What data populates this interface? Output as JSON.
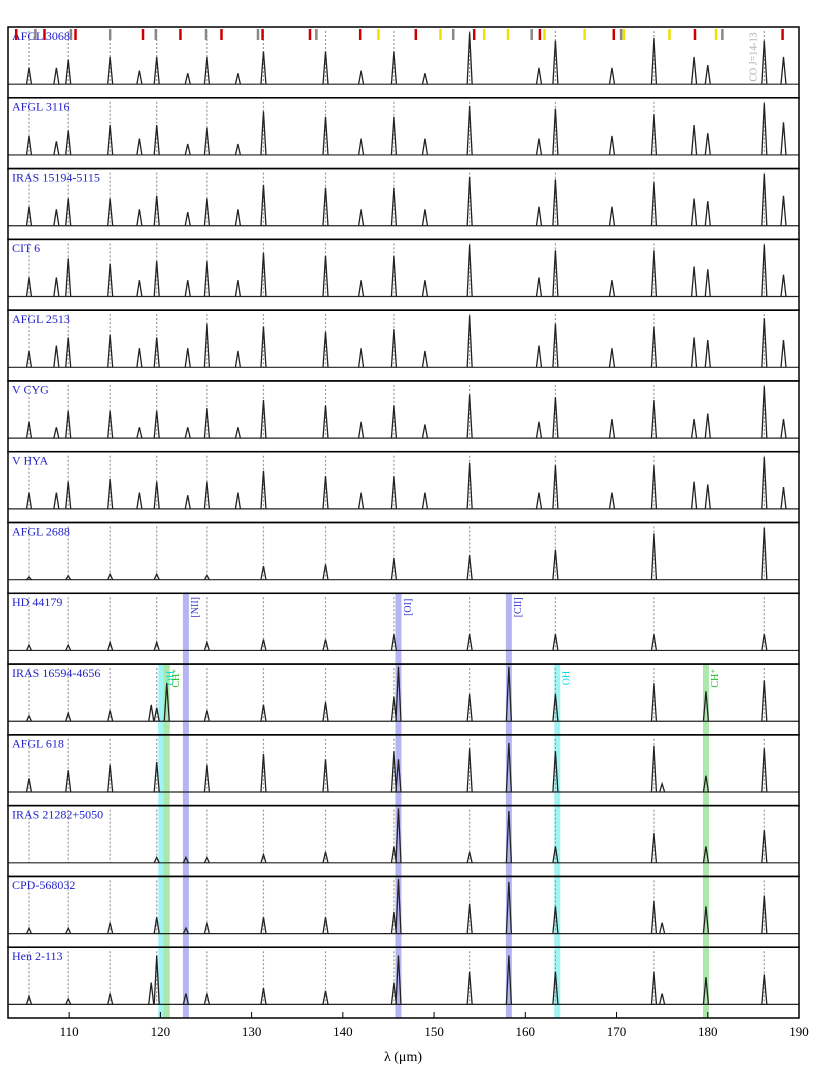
{
  "chart_data": {
    "type": "spectra",
    "xlabel": "λ (μm)",
    "xlim": [
      103.3,
      190
    ],
    "xticks": [
      110,
      120,
      130,
      140,
      150,
      160,
      170,
      180,
      190
    ],
    "ylim": [
      -0.25,
      1.05
    ],
    "line_color": "#222222",
    "name_color": "#2222cc",
    "co_lines": [
      105.6,
      109.9,
      114.5,
      119.6,
      125.1,
      131.3,
      138.1,
      145.6,
      153.9,
      163.3,
      174.1,
      186.2
    ],
    "markers": [
      {
        "color": "#cc0000",
        "x": [
          104.2,
          107.3,
          110.7,
          118.1,
          122.2,
          126.7,
          131.2,
          136.4,
          141.9,
          148.0,
          154.4,
          161.6,
          169.7,
          178.6,
          188.2
        ]
      },
      {
        "color": "#888888",
        "x": [
          106.3,
          110.2,
          114.5,
          119.5,
          125.0,
          130.7,
          137.1,
          152.1,
          160.7,
          170.5,
          181.6
        ]
      },
      {
        "color": "#f0e000",
        "x": [
          143.9,
          150.7,
          155.5,
          158.1,
          162.1,
          166.5,
          170.8,
          175.8,
          180.9
        ]
      }
    ],
    "panels": [
      {
        "name": "AFGL 3068",
        "annotation": {
          "text": "CO J=14-13",
          "x": 186.2
        },
        "x": [
          105.6,
          108.6,
          109.9,
          114.5,
          117.7,
          119.6,
          123.0,
          125.1,
          128.5,
          131.3,
          138.1,
          142.0,
          145.6,
          149.0,
          153.9,
          161.5,
          163.3,
          169.5,
          174.1,
          178.5,
          180.0,
          186.2,
          188.3
        ],
        "values": [
          0.3,
          0.3,
          0.45,
          0.5,
          0.25,
          0.5,
          0.2,
          0.5,
          0.2,
          0.6,
          0.6,
          0.25,
          0.6,
          0.2,
          0.95,
          0.3,
          0.8,
          0.3,
          0.85,
          0.5,
          0.35,
          0.8,
          0.5
        ]
      },
      {
        "name": "AFGL 3116",
        "x": [
          105.6,
          108.6,
          109.9,
          114.5,
          117.7,
          119.6,
          123.0,
          125.1,
          128.5,
          131.3,
          138.1,
          142.0,
          145.6,
          149.0,
          153.9,
          161.5,
          163.3,
          169.5,
          174.1,
          178.5,
          180.0,
          186.2,
          188.3
        ],
        "values": [
          0.35,
          0.25,
          0.45,
          0.55,
          0.3,
          0.55,
          0.2,
          0.5,
          0.2,
          0.8,
          0.7,
          0.3,
          0.7,
          0.3,
          0.9,
          0.3,
          0.85,
          0.35,
          0.75,
          0.55,
          0.4,
          0.95,
          0.6
        ]
      },
      {
        "name": "IRAS 15194-5115",
        "x": [
          105.6,
          108.6,
          109.9,
          114.5,
          117.7,
          119.6,
          123.0,
          125.1,
          128.5,
          131.3,
          138.1,
          142.0,
          145.6,
          149.0,
          153.9,
          161.5,
          163.3,
          169.5,
          174.1,
          178.5,
          180.0,
          186.2,
          188.3
        ],
        "values": [
          0.35,
          0.3,
          0.5,
          0.5,
          0.3,
          0.55,
          0.25,
          0.5,
          0.3,
          0.75,
          0.7,
          0.3,
          0.7,
          0.3,
          0.9,
          0.35,
          0.85,
          0.35,
          0.8,
          0.5,
          0.45,
          0.95,
          0.55
        ]
      },
      {
        "name": "CIT 6",
        "x": [
          105.6,
          108.6,
          109.9,
          114.5,
          117.7,
          119.6,
          123.0,
          125.1,
          128.5,
          131.3,
          138.1,
          142.0,
          145.6,
          149.0,
          153.9,
          161.5,
          163.3,
          169.5,
          174.1,
          178.5,
          180.0,
          186.2,
          188.3
        ],
        "values": [
          0.35,
          0.35,
          0.7,
          0.6,
          0.3,
          0.65,
          0.3,
          0.65,
          0.3,
          0.8,
          0.75,
          0.3,
          0.75,
          0.3,
          0.95,
          0.35,
          0.85,
          0.3,
          0.85,
          0.55,
          0.5,
          0.95,
          0.4
        ]
      },
      {
        "name": "AFGL 2513",
        "x": [
          105.6,
          108.6,
          109.9,
          114.5,
          117.7,
          119.6,
          123.0,
          125.1,
          128.5,
          131.3,
          138.1,
          142.0,
          145.6,
          149.0,
          153.9,
          161.5,
          163.3,
          169.5,
          174.1,
          178.5,
          180.0,
          186.2,
          188.3
        ],
        "values": [
          0.3,
          0.4,
          0.55,
          0.6,
          0.35,
          0.55,
          0.35,
          0.8,
          0.3,
          0.75,
          0.65,
          0.35,
          0.7,
          0.3,
          0.95,
          0.4,
          0.8,
          0.35,
          0.75,
          0.55,
          0.5,
          0.9,
          0.5
        ]
      },
      {
        "name": "V CYG",
        "x": [
          105.6,
          108.6,
          109.9,
          114.5,
          117.7,
          119.6,
          123.0,
          125.1,
          128.5,
          131.3,
          138.1,
          142.0,
          145.6,
          149.0,
          153.9,
          161.5,
          163.3,
          169.5,
          174.1,
          178.5,
          180.0,
          186.2,
          188.3
        ],
        "values": [
          0.3,
          0.2,
          0.5,
          0.5,
          0.2,
          0.5,
          0.2,
          0.55,
          0.2,
          0.7,
          0.6,
          0.3,
          0.6,
          0.25,
          0.8,
          0.3,
          0.75,
          0.35,
          0.7,
          0.35,
          0.45,
          0.95,
          0.35
        ]
      },
      {
        "name": "V HYA",
        "x": [
          105.6,
          108.6,
          109.9,
          114.5,
          117.7,
          119.6,
          123.0,
          125.1,
          128.5,
          131.3,
          138.1,
          142.0,
          145.6,
          149.0,
          153.9,
          161.5,
          163.3,
          169.5,
          174.1,
          178.5,
          180.0,
          186.2,
          188.3
        ],
        "values": [
          0.3,
          0.3,
          0.5,
          0.55,
          0.3,
          0.5,
          0.25,
          0.5,
          0.3,
          0.7,
          0.6,
          0.3,
          0.6,
          0.3,
          0.85,
          0.3,
          0.8,
          0.3,
          0.8,
          0.5,
          0.45,
          0.95,
          0.4
        ]
      },
      {
        "name": "AFGL 2688",
        "x": [
          105.6,
          109.9,
          114.5,
          119.6,
          125.1,
          131.3,
          138.1,
          145.6,
          153.9,
          163.3,
          174.1,
          186.2
        ],
        "values": [
          0.05,
          0.07,
          0.1,
          0.1,
          0.08,
          0.25,
          0.28,
          0.4,
          0.45,
          0.55,
          0.85,
          0.95
        ]
      },
      {
        "name": "HD 44179",
        "bands": [
          {
            "label": "[NII]",
            "x": 122.8,
            "color": "#9c9cf0",
            "label_color": "#3333cc"
          },
          {
            "label": "[OI]",
            "x": 146.1,
            "color": "#9c9cf0",
            "label_color": "#3333cc"
          },
          {
            "label": "[CII]",
            "x": 158.2,
            "color": "#9c9cf0",
            "label_color": "#3333cc"
          }
        ],
        "x": [
          105.6,
          109.9,
          114.5,
          119.6,
          125.1,
          131.3,
          138.1,
          145.6,
          153.9,
          163.3,
          174.1,
          186.2
        ],
        "values": [
          0.1,
          0.1,
          0.15,
          0.15,
          0.15,
          0.2,
          0.2,
          0.3,
          0.3,
          0.3,
          0.3,
          0.3
        ]
      },
      {
        "name": "IRAS 16594-4656",
        "bands": [
          {
            "label": "OH",
            "x": 120.1,
            "color": "#80f0f0",
            "label_color": "#00dddd"
          },
          {
            "label": "CH⁺",
            "x": 120.7,
            "color": "#90e090",
            "label_color": "#22bb22"
          },
          {
            "label": "OH",
            "x": 163.5,
            "color": "#80f0f0",
            "label_color": "#00dddd"
          },
          {
            "label": "CH⁺",
            "x": 179.8,
            "color": "#90e090",
            "label_color": "#22bb22"
          }
        ],
        "x": [
          105.6,
          109.9,
          114.5,
          119.0,
          119.6,
          120.7,
          125.1,
          131.3,
          138.1,
          145.6,
          146.1,
          153.9,
          158.2,
          163.3,
          174.1,
          179.8,
          186.2
        ],
        "values": [
          0.1,
          0.15,
          0.2,
          0.3,
          0.25,
          0.7,
          0.2,
          0.3,
          0.35,
          0.45,
          1.0,
          0.5,
          1.0,
          0.5,
          0.7,
          0.55,
          0.75
        ]
      },
      {
        "name": "AFGL 618",
        "x": [
          105.6,
          109.9,
          114.5,
          119.6,
          125.1,
          131.3,
          138.1,
          145.6,
          146.1,
          153.9,
          158.2,
          163.3,
          174.1,
          175.0,
          179.8,
          186.2
        ],
        "values": [
          0.25,
          0.4,
          0.5,
          0.55,
          0.5,
          0.7,
          0.6,
          0.75,
          0.6,
          0.8,
          0.9,
          0.75,
          0.85,
          0.15,
          0.3,
          0.8
        ]
      },
      {
        "name": "IRAS 21282+5050",
        "x": [
          119.6,
          122.8,
          125.1,
          131.3,
          138.1,
          145.6,
          146.1,
          153.9,
          158.2,
          163.3,
          174.1,
          179.8,
          186.2
        ],
        "values": [
          0.1,
          0.1,
          0.1,
          0.15,
          0.2,
          0.3,
          1.0,
          0.2,
          0.95,
          0.3,
          0.55,
          0.3,
          0.6
        ]
      },
      {
        "name": "CPD-568032",
        "x": [
          105.6,
          109.9,
          114.5,
          119.6,
          122.8,
          125.1,
          131.3,
          138.1,
          145.6,
          146.1,
          153.9,
          158.2,
          163.3,
          174.1,
          175.0,
          179.8,
          186.2
        ],
        "values": [
          0.1,
          0.1,
          0.2,
          0.3,
          0.1,
          0.2,
          0.3,
          0.3,
          0.4,
          1.0,
          0.55,
          0.95,
          0.5,
          0.6,
          0.2,
          0.5,
          0.7
        ]
      },
      {
        "name": "Hen 2-113",
        "x": [
          105.6,
          109.9,
          114.5,
          119.0,
          119.6,
          122.8,
          125.1,
          131.3,
          138.1,
          145.6,
          146.1,
          153.9,
          158.2,
          163.3,
          174.1,
          175.0,
          179.8,
          186.2
        ],
        "values": [
          0.15,
          0.1,
          0.2,
          0.4,
          0.9,
          0.2,
          0.2,
          0.3,
          0.25,
          0.4,
          0.9,
          0.6,
          0.9,
          0.6,
          0.6,
          0.2,
          0.5,
          0.55
        ]
      }
    ]
  }
}
